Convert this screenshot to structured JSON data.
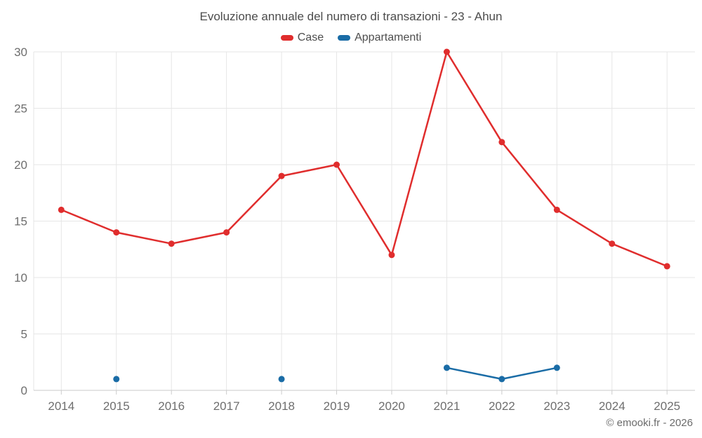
{
  "footer": "© emooki.fr - 2026",
  "colors": {
    "background": "#ffffff",
    "grid": "#e6e6e6",
    "axis_line": "#c9c9c9",
    "tick_mark": "#cccccc",
    "title_text": "#4c4c4c",
    "axis_label_text": "#6e6e6e",
    "legend_text": "#4d4d4d",
    "footer_text": "#6b6b6b",
    "case_red": "#e02d2d",
    "appartamenti_blue": "#1a6ca6"
  },
  "chart_data": {
    "type": "line",
    "title": "Evoluzione annuale del numero di transazioni - 23 - Ahun",
    "categories": [
      "2014",
      "2015",
      "2016",
      "2017",
      "2018",
      "2019",
      "2020",
      "2021",
      "2022",
      "2023",
      "2024",
      "2025"
    ],
    "series": [
      {
        "name": "Case",
        "color": "#e02d2d",
        "values": [
          16,
          14,
          13,
          14,
          19,
          20,
          12,
          30,
          22,
          16,
          13,
          11
        ]
      },
      {
        "name": "Appartamenti",
        "color": "#1a6ca6",
        "values": [
          null,
          1,
          null,
          null,
          1,
          null,
          null,
          2,
          1,
          2,
          null,
          null
        ]
      }
    ],
    "xlabel": "",
    "ylabel": "",
    "ylim": [
      0,
      30
    ],
    "yticks": [
      0,
      5,
      10,
      15,
      20,
      25,
      30
    ],
    "grid": true,
    "legend_position": "top"
  }
}
